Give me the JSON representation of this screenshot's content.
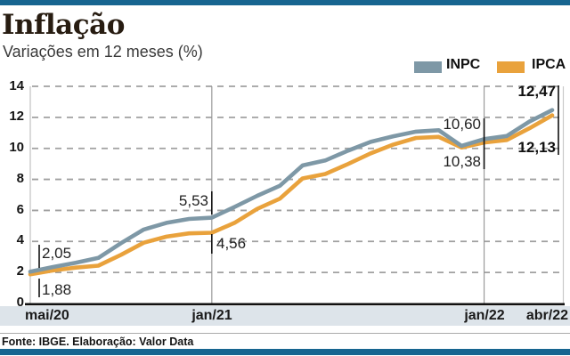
{
  "header": {
    "title": "Inflação",
    "subtitle": "Variações em 12 meses (%)"
  },
  "chart_data": {
    "type": "line",
    "title": "Inflação",
    "subtitle": "Variações em 12 meses (%)",
    "unit": "%",
    "grid": "horizontal-dashed",
    "legend_position": "top-right",
    "ylim": [
      0,
      14
    ],
    "yticks": [
      0,
      2,
      4,
      6,
      8,
      10,
      12,
      14
    ],
    "ytick_labels": [
      "14",
      "12",
      "10",
      "8",
      "6",
      "4",
      "2",
      "0"
    ],
    "xticks": [
      "mai/20",
      "jan/21",
      "jan/22",
      "abr/22"
    ],
    "ref_line_indices": [
      8,
      20
    ],
    "x": [
      "mai/20",
      "jun/20",
      "jul/20",
      "ago/20",
      "set/20",
      "out/20",
      "nov/20",
      "dez/20",
      "jan/21",
      "fev/21",
      "mar/21",
      "abr/21",
      "mai/21",
      "jun/21",
      "jul/21",
      "ago/21",
      "set/21",
      "out/21",
      "nov/21",
      "dez/21",
      "jan/22",
      "fev/22",
      "mar/22",
      "abr/22"
    ],
    "series": [
      {
        "name": "INPC",
        "color": "#7e98a6",
        "values": [
          2.05,
          2.35,
          2.62,
          2.94,
          3.89,
          4.77,
          5.2,
          5.45,
          5.53,
          6.22,
          6.94,
          7.59,
          8.9,
          9.22,
          9.85,
          10.42,
          10.78,
          11.08,
          11.17,
          10.16,
          10.6,
          10.8,
          11.73,
          12.47
        ]
      },
      {
        "name": "IPCA",
        "color": "#e9a23c",
        "values": [
          1.88,
          2.13,
          2.31,
          2.44,
          3.14,
          3.92,
          4.31,
          4.52,
          4.56,
          5.2,
          6.1,
          6.76,
          8.06,
          8.35,
          8.99,
          9.68,
          10.25,
          10.67,
          10.74,
          10.06,
          10.38,
          10.54,
          11.3,
          12.13
        ]
      }
    ],
    "annotations": {
      "start_inpc": {
        "label": "2,05",
        "value": 2.05,
        "series": "INPC",
        "x": "mai/20"
      },
      "start_ipca": {
        "label": "1,88",
        "value": 1.88,
        "series": "IPCA",
        "x": "mai/20"
      },
      "jan21_inpc": {
        "label": "5,53",
        "value": 5.53,
        "series": "INPC",
        "x": "jan/21"
      },
      "jan21_ipca": {
        "label": "4,56",
        "value": 4.56,
        "series": "IPCA",
        "x": "jan/21"
      },
      "jan22_inpc": {
        "label": "10,60",
        "value": 10.6,
        "series": "INPC",
        "x": "jan/22"
      },
      "jan22_ipca": {
        "label": "10,38",
        "value": 10.38,
        "series": "IPCA",
        "x": "jan/22"
      },
      "end_inpc": {
        "label": "12,47",
        "value": 12.47,
        "series": "INPC",
        "x": "abr/22"
      },
      "end_ipca": {
        "label": "12,13",
        "value": 12.13,
        "series": "IPCA",
        "x": "abr/22"
      }
    },
    "colors": {
      "accent_bar": "#176590",
      "band_background": "#dde4ea",
      "gridline": "#a0a0a0",
      "axis": "#101010"
    }
  },
  "footer": {
    "source": "Fonte: IBGE. Elaboração: Valor Data"
  }
}
